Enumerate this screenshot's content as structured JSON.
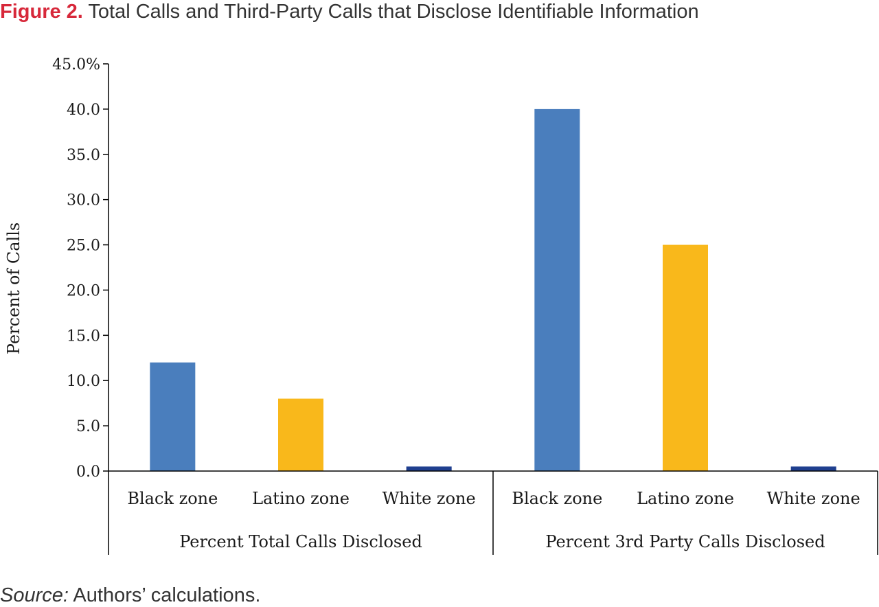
{
  "figure": {
    "label": "Figure 2.",
    "title": "Total Calls and Third-Party Calls that Disclose Identifiable Information",
    "source_label": "Source:",
    "source_text": "Authors’ calculations."
  },
  "colors": {
    "title_label": "#d7283a",
    "black_zone": "#4a7ebd",
    "latino_zone": "#f9b81b",
    "white_zone": "#1f3f8f"
  },
  "chart_data": {
    "type": "bar",
    "title": "",
    "xlabel": "",
    "ylabel": "Percent of Calls",
    "ylim": [
      0,
      45
    ],
    "yticks": [
      "0.0",
      "5.0",
      "10.0",
      "15.0",
      "20.0",
      "25.0",
      "30.0",
      "35.0",
      "40.0",
      "45.0%"
    ],
    "grid": false,
    "legend": "none",
    "groups": [
      {
        "name": "Percent Total Calls Disclosed",
        "categories": [
          "Black zone",
          "Latino zone",
          "White zone"
        ],
        "values": [
          12.0,
          8.0,
          0.5
        ]
      },
      {
        "name": "Percent 3rd Party Calls Disclosed",
        "categories": [
          "Black zone",
          "Latino zone",
          "White zone"
        ],
        "values": [
          40.0,
          25.0,
          0.5
        ]
      }
    ]
  }
}
